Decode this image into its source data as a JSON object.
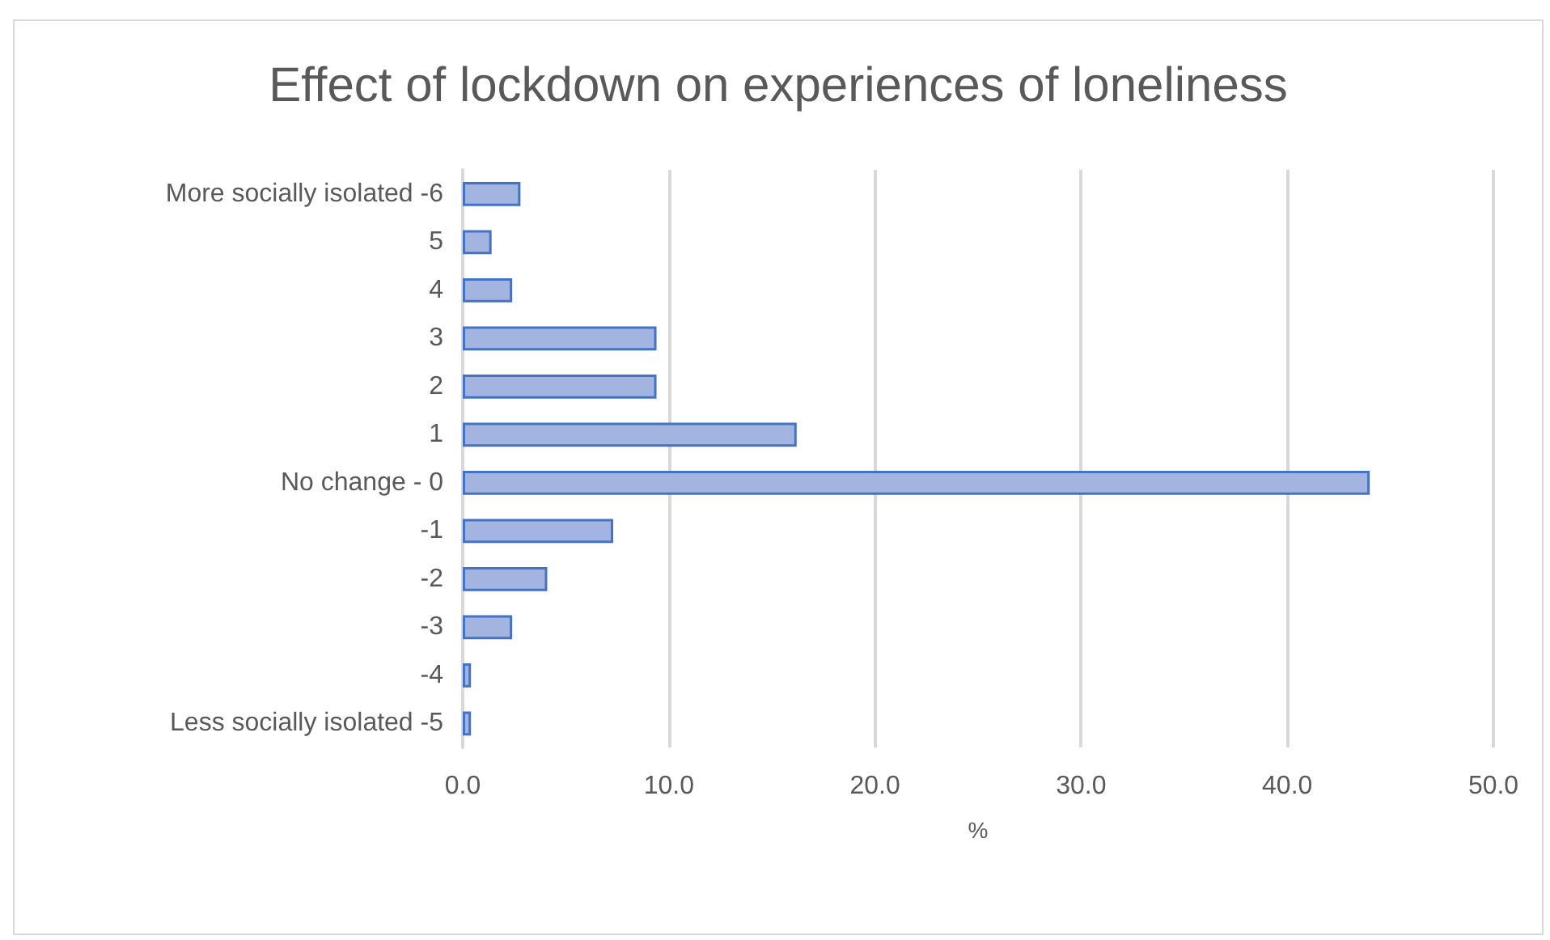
{
  "chart_data": {
    "type": "bar",
    "orientation": "horizontal",
    "title": "Effect of lockdown on experiences of loneliness",
    "xlabel": "%",
    "categories": [
      "More socially isolated -6",
      "5",
      "4",
      "3",
      "2",
      "1",
      "No change - 0",
      "-1",
      "-2",
      "-3",
      "-4",
      "Less socially isolated -5"
    ],
    "values": [
      2.8,
      1.4,
      2.4,
      9.4,
      9.4,
      16.2,
      44.0,
      7.3,
      4.1,
      2.4,
      0.4,
      0.4
    ],
    "color": "#a4b4e0",
    "xlim": [
      0,
      50
    ],
    "xticks": [
      {
        "value": 0,
        "label": "0.0"
      },
      {
        "value": 10,
        "label": "10.0"
      },
      {
        "value": 20,
        "label": "20.0"
      },
      {
        "value": 30,
        "label": "30.0"
      },
      {
        "value": 40,
        "label": "40.0"
      },
      {
        "value": 50,
        "label": "50.0"
      }
    ],
    "grid": "x"
  }
}
